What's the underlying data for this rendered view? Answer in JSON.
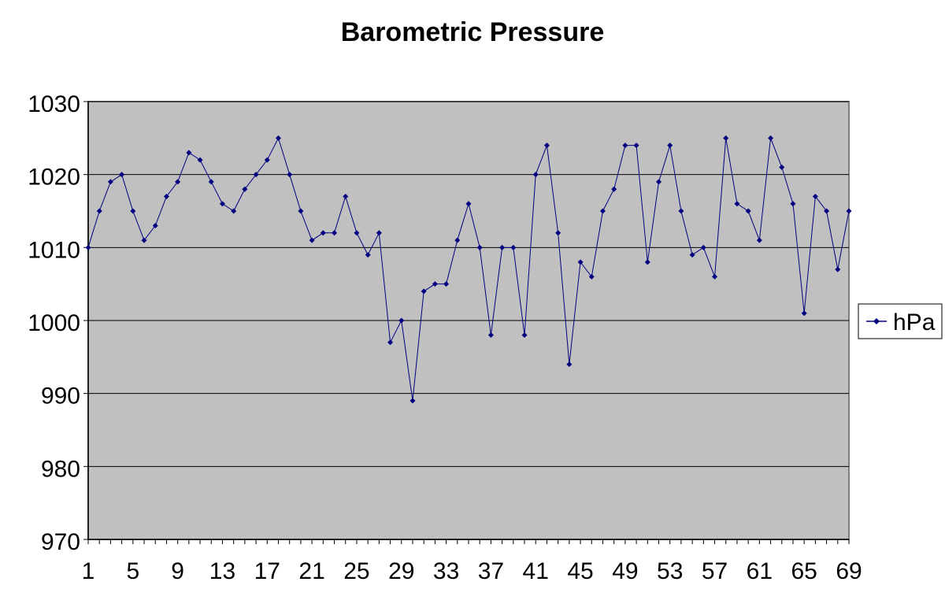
{
  "chart_data": {
    "type": "line",
    "title": "Barometric Pressure",
    "xlabel": "",
    "ylabel": "",
    "ylim": [
      970,
      1030
    ],
    "yticks": [
      970,
      980,
      990,
      1000,
      1010,
      1020,
      1030
    ],
    "x": [
      1,
      2,
      3,
      4,
      5,
      6,
      7,
      8,
      9,
      10,
      11,
      12,
      13,
      14,
      15,
      16,
      17,
      18,
      19,
      20,
      21,
      22,
      23,
      24,
      25,
      26,
      27,
      28,
      29,
      30,
      31,
      32,
      33,
      34,
      35,
      36,
      37,
      38,
      39,
      40,
      41,
      42,
      43,
      44,
      45,
      46,
      47,
      48,
      49,
      50,
      51,
      52,
      53,
      54,
      55,
      56,
      57,
      58,
      59,
      60,
      61,
      62,
      63,
      64,
      65,
      66,
      67,
      68,
      69
    ],
    "xtick_labels": [
      "1",
      "5",
      "9",
      "13",
      "17",
      "21",
      "25",
      "29",
      "33",
      "37",
      "41",
      "45",
      "49",
      "53",
      "57",
      "61",
      "65",
      "69"
    ],
    "series": [
      {
        "name": "hPa",
        "color": "#000080",
        "values": [
          1010,
          1015,
          1019,
          1020,
          1015,
          1011,
          1013,
          1017,
          1019,
          1023,
          1022,
          1019,
          1016,
          1015,
          1018,
          1020,
          1022,
          1025,
          1020,
          1015,
          1011,
          1012,
          1012,
          1017,
          1012,
          1009,
          1012,
          997,
          1000,
          989,
          1004,
          1005,
          1005,
          1011,
          1016,
          1010,
          998,
          1010,
          1010,
          998,
          1020,
          1024,
          1012,
          994,
          1008,
          1006,
          1015,
          1018,
          1024,
          1024,
          1008,
          1019,
          1024,
          1015,
          1009,
          1010,
          1006,
          1025,
          1016,
          1015,
          1011,
          1025,
          1021,
          1016,
          1001,
          1017,
          1015,
          1007,
          1015
        ]
      }
    ],
    "grid": true,
    "legend": "right",
    "plot_background": "#c0c0c0"
  }
}
